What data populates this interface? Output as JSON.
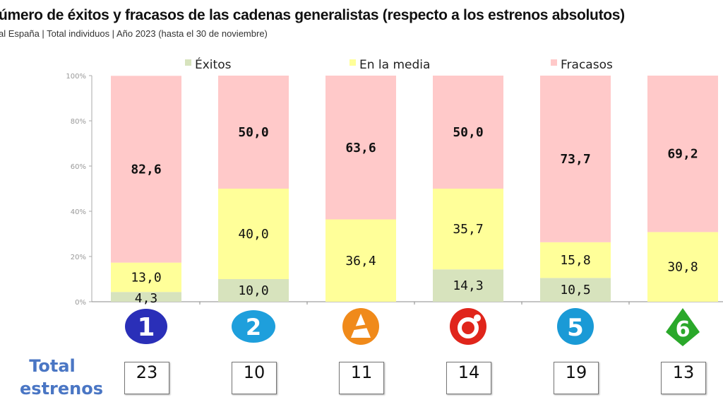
{
  "chart_data": {
    "type": "bar",
    "stacked": true,
    "title": "úmero de éxitos y fracasos de las cadenas generalistas (respecto a los estrenos absolutos)",
    "subtitle": "al España | Total individuos | Año 2023 (hasta el 30 de noviembre)",
    "categories": [
      "la1-logo",
      "la2-logo",
      "antena3-logo",
      "cuatro-logo",
      "telecinco-logo",
      "lasexta-logo"
    ],
    "ylim": [
      0,
      100
    ],
    "yticks": [
      "0%",
      "20%",
      "40%",
      "60%",
      "80%",
      "100%"
    ],
    "legend_position": "top",
    "grid": false,
    "series": [
      {
        "name": "Éxitos",
        "color": "#d7e3bd",
        "values": [
          4.3,
          10.0,
          0,
          14.3,
          10.5,
          0
        ],
        "labels": [
          "4,3",
          "10,0",
          "",
          "14,3",
          "10,5",
          ""
        ]
      },
      {
        "name": "En la media",
        "color": "#ffff99",
        "values": [
          13.0,
          40.0,
          36.4,
          35.7,
          15.8,
          30.8
        ],
        "labels": [
          "13,0",
          "40,0",
          "36,4",
          "35,7",
          "15,8",
          "30,8"
        ]
      },
      {
        "name": "Fracasos",
        "color": "#ffc9c9",
        "values": [
          82.6,
          50.0,
          63.6,
          50.0,
          73.7,
          69.2
        ],
        "labels": [
          "82,6",
          "50,0",
          "63,6",
          "50,0",
          "73,7",
          "69,2"
        ]
      }
    ]
  },
  "totals": {
    "label_line1": "Total",
    "label_line2": "estrenos",
    "values": [
      "23",
      "10",
      "11",
      "14",
      "19",
      "13"
    ]
  }
}
